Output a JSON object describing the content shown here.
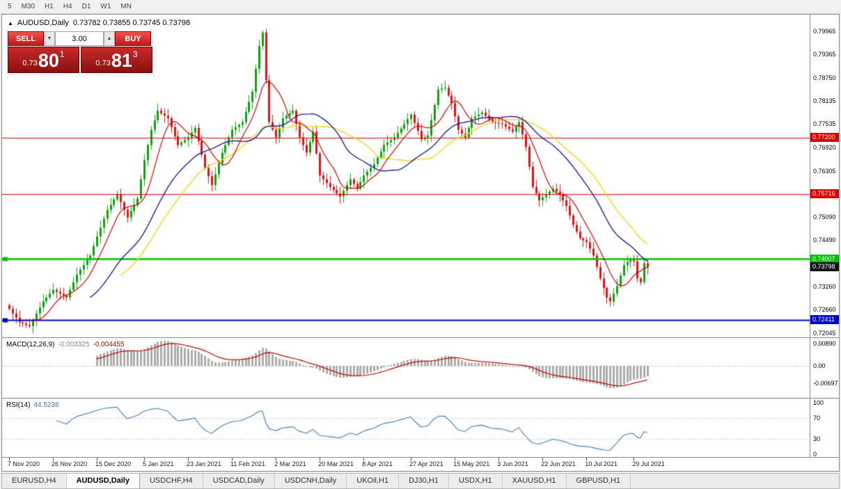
{
  "toolbar": {
    "periods": [
      "5",
      "M30",
      "H1",
      "H4",
      "D1",
      "W1",
      "MN"
    ]
  },
  "chart": {
    "symbol_marker_glyph": "▲",
    "title_symbol": "AUDUSD,Daily",
    "title_ohlc": "0.73782 0.73855 0.73745 0.73798",
    "trade_panel": {
      "sell_label": "SELL",
      "buy_label": "BUY",
      "volume": "3.00",
      "stepper_down_glyph": "▼",
      "stepper_up_glyph": "▲",
      "sell_price": {
        "prefix": "0.73",
        "big": "80",
        "sup": "1"
      },
      "buy_price": {
        "prefix": "0.73",
        "big": "81",
        "sup": "3"
      }
    },
    "levels": [
      {
        "price": 0.772,
        "label": "0.77200",
        "color": "#e00000",
        "width": 1,
        "marker": false
      },
      {
        "price": 0.75716,
        "label": "0.75716",
        "color": "#e00000",
        "width": 1,
        "marker": false
      },
      {
        "price": 0.74007,
        "label": "0.74007",
        "color": "#00c000",
        "width": 2.5,
        "marker": true
      },
      {
        "price": 0.72411,
        "label": "0.72411",
        "color": "#0000cc",
        "width": 2,
        "marker": true
      }
    ],
    "current_price": {
      "value": 0.73798,
      "label": "0.73798",
      "color": "#141414"
    },
    "y_axis_labels": [
      "0.79965",
      "0.79365",
      "0.78750",
      "0.78135",
      "0.77535",
      "0.76920",
      "0.76305",
      "0.75705",
      "0.75090",
      "0.74490",
      "0.73875",
      "0.73260",
      "0.72660",
      "0.72045"
    ],
    "x_axis_labels": [
      "7 Nov 2020",
      "26 Nov 2020",
      "15 Dec 2020",
      "5 Jan 2021",
      "23 Jan 2021",
      "11 Feb 2021",
      "2 Mar 2021",
      "20 Mar 2021",
      "8 Apr 2021",
      "27 Apr 2021",
      "15 May 2021",
      "3 Jun 2021",
      "22 Jun 2021",
      "10 Jul 2021",
      "29 Jul 2021"
    ]
  },
  "macd": {
    "name": "MACD(12,26,9)",
    "value_main": "-0.003325",
    "value_signal": "-0.004455",
    "axis_labels": [
      "0.00890",
      "0.00",
      "-0.00697"
    ]
  },
  "rsi": {
    "name": "RSI(14)",
    "value": "44.5238",
    "axis_labels": [
      "100",
      "70",
      "30",
      "0"
    ]
  },
  "tabs": [
    {
      "label": "EURUSD,H4",
      "active": false
    },
    {
      "label": "AUDUSD,Daily",
      "active": true
    },
    {
      "label": "USDCHF,H4",
      "active": false
    },
    {
      "label": "USDCAD,Daily",
      "active": false
    },
    {
      "label": "USDCNH,Daily",
      "active": false
    },
    {
      "label": "UKOil,H1",
      "active": false
    },
    {
      "label": "DJ30,H1",
      "active": false
    },
    {
      "label": "USDX,H1",
      "active": false
    },
    {
      "label": "XAUUSD,H1",
      "active": false
    },
    {
      "label": "GBPUSD,H1",
      "active": false
    }
  ],
  "chart_data": {
    "type": "candlestick",
    "symbol": "AUDUSD",
    "timeframe": "Daily",
    "y_axis_top": 0.79965,
    "y_axis_bottom": 0.72045,
    "first_open": 0.728,
    "closes": [
      0.727,
      0.7258,
      0.7247,
      0.7235,
      0.7232,
      0.7228,
      0.7225,
      0.7241,
      0.7258,
      0.7274,
      0.729,
      0.73,
      0.731,
      0.732,
      0.7315,
      0.731,
      0.7305,
      0.73,
      0.732,
      0.734,
      0.736,
      0.7373,
      0.7385,
      0.7398,
      0.741,
      0.7435,
      0.746,
      0.7483,
      0.7507,
      0.753,
      0.7543,
      0.7557,
      0.757,
      0.755,
      0.753,
      0.751,
      0.7527,
      0.7543,
      0.756,
      0.761,
      0.766,
      0.77,
      0.774,
      0.7765,
      0.779,
      0.7783,
      0.7777,
      0.777,
      0.7747,
      0.7723,
      0.77,
      0.7707,
      0.7713,
      0.772,
      0.7733,
      0.7745,
      0.771,
      0.7675,
      0.764,
      0.7618,
      0.7595,
      0.7623,
      0.7652,
      0.768,
      0.77,
      0.772,
      0.774,
      0.7747,
      0.7753,
      0.776,
      0.7787,
      0.7813,
      0.784,
      0.79,
      0.796,
      0.7995,
      0.787,
      0.776,
      0.774,
      0.772,
      0.7745,
      0.777,
      0.7777,
      0.7783,
      0.779,
      0.7755,
      0.772,
      0.77,
      0.768,
      0.7708,
      0.7735,
      0.7678,
      0.762,
      0.761,
      0.76,
      0.759,
      0.7582,
      0.7573,
      0.7565,
      0.758,
      0.7595,
      0.761,
      0.7598,
      0.7585,
      0.7603,
      0.762,
      0.763,
      0.764,
      0.765,
      0.7667,
      0.7683,
      0.77,
      0.7707,
      0.7713,
      0.772,
      0.7732,
      0.7743,
      0.7755,
      0.7768,
      0.778,
      0.7758,
      0.7737,
      0.7715,
      0.772,
      0.7725,
      0.7765,
      0.7805,
      0.7845,
      0.7848,
      0.785,
      0.783,
      0.781,
      0.7775,
      0.774,
      0.773,
      0.772,
      0.7745,
      0.777,
      0.7775,
      0.778,
      0.7785,
      0.7777,
      0.7768,
      0.776,
      0.7758,
      0.7757,
      0.7755,
      0.7748,
      0.7742,
      0.7735,
      0.7748,
      0.776,
      0.7728,
      0.7695,
      0.7643,
      0.759,
      0.7573,
      0.7555,
      0.7563,
      0.757,
      0.7578,
      0.7585,
      0.7578,
      0.757,
      0.7555,
      0.754,
      0.7515,
      0.749,
      0.7473,
      0.7455,
      0.745,
      0.7445,
      0.7428,
      0.741,
      0.738,
      0.735,
      0.7325,
      0.73,
      0.729,
      0.731,
      0.733,
      0.7358,
      0.7385,
      0.7393,
      0.74,
      0.7395,
      0.735,
      0.734,
      0.739,
      0.73798
    ],
    "x_tick_indices": [
      0,
      13,
      26,
      40,
      53,
      66,
      79,
      92,
      105,
      119,
      132,
      145,
      158,
      171,
      185
    ],
    "horizontal_levels": [
      0.772,
      0.75716,
      0.74007,
      0.72411
    ],
    "last_price": 0.73798,
    "indicators": {
      "ma_periods": [
        8,
        25,
        34
      ],
      "macd_params": [
        12,
        26,
        9
      ],
      "macd_last_values": [
        -0.003325,
        -0.004455
      ],
      "rsi_period": 14,
      "rsi_last_value": 44.5238
    },
    "colors": {
      "up": "#0ea00e",
      "down": "#e01212",
      "ma_fast": "#cc0000",
      "ma_mid": "#1c1c9e",
      "ma_slow": "#efd41c",
      "macd_hist": "#ababab",
      "macd_signal": "#c40000",
      "rsi": "#4079b8"
    }
  }
}
